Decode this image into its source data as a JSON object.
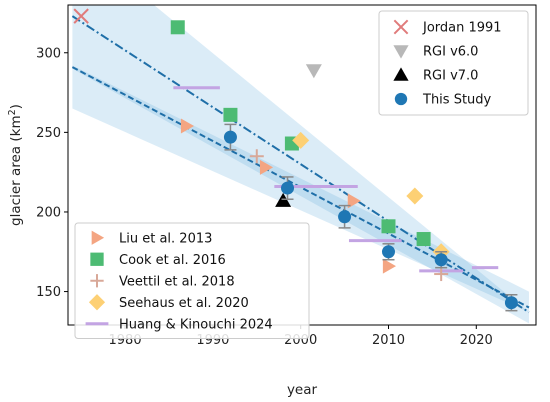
{
  "chart_data": {
    "type": "scatter",
    "xlabel": "year",
    "ylabel": "glacier area (km",
    "ylabel_sup": "2",
    "ylabel_tail": ")",
    "xlim": [
      1973.5,
      2026.8
    ],
    "ylim": [
      129,
      330
    ],
    "xticks": [
      1980,
      1990,
      2000,
      2010,
      2020
    ],
    "yticks": [
      150,
      200,
      250,
      300
    ],
    "xtick_labels": [
      "1980",
      "1990",
      "2000",
      "2010",
      "2020"
    ],
    "ytick_labels": [
      "150",
      "200",
      "250",
      "300"
    ],
    "series": [
      {
        "name": "Jordan 1991",
        "marker": "x",
        "color": "#e07b7b",
        "points": [
          [
            1975,
            323
          ]
        ]
      },
      {
        "name": "RGI v6.0",
        "marker": "triangle-down",
        "color": "#b8b8b8",
        "points": [
          [
            2001.5,
            289
          ]
        ]
      },
      {
        "name": "RGI v7.0",
        "marker": "triangle-up",
        "color": "#000000",
        "points": [
          [
            1998,
            207
          ]
        ]
      },
      {
        "name": "This Study",
        "marker": "circle",
        "color": "#1f77b4",
        "points": [
          [
            1992,
            247
          ],
          [
            1998.5,
            215
          ],
          [
            2005,
            197
          ],
          [
            2010,
            175
          ],
          [
            2016,
            170
          ],
          [
            2024,
            143
          ]
        ],
        "yerr": [
          8,
          7,
          7,
          5,
          5,
          5
        ]
      },
      {
        "name": "Liu et al. 2013",
        "marker": "triangle-right",
        "color": "#f4a582",
        "points": [
          [
            1987,
            254
          ],
          [
            1996,
            228
          ],
          [
            2006,
            207
          ],
          [
            2010,
            166
          ]
        ]
      },
      {
        "name": "Cook et al. 2016",
        "marker": "square",
        "color": "#4dbb73",
        "points": [
          [
            1986,
            316
          ],
          [
            1992,
            261
          ],
          [
            1999,
            243
          ],
          [
            2010,
            191
          ],
          [
            2014,
            183
          ]
        ]
      },
      {
        "name": "Veettil et al. 2018",
        "marker": "plus",
        "color": "#d8a898",
        "points": [
          [
            1995,
            235
          ],
          [
            2016,
            161
          ]
        ]
      },
      {
        "name": "Seehaus et al. 2020",
        "marker": "diamond",
        "color": "#fdd074",
        "points": [
          [
            2000,
            245
          ],
          [
            2013,
            210
          ],
          [
            2016,
            175
          ]
        ]
      },
      {
        "name": "Huang & Kinouchi 2024",
        "marker": "hline",
        "color": "#c3a4e3",
        "segments": [
          [
            1985.5,
            1990.8,
            278
          ],
          [
            1997,
            2006.5,
            216
          ],
          [
            2005.5,
            2011.5,
            182
          ],
          [
            2013.5,
            2018.5,
            163
          ],
          [
            2019.5,
            2022.5,
            165
          ]
        ]
      }
    ],
    "fits": [
      {
        "style": "dash-dot",
        "color": "#1f6fa8",
        "x": [
          1974,
          2026
        ],
        "y": [
          323,
          137
        ],
        "band": [
          [
            265,
            372
          ],
          [
            137,
            137
          ]
        ]
      },
      {
        "style": "dashed",
        "color": "#1f6fa8",
        "x": [
          1974,
          2026
        ],
        "y": [
          291,
          140
        ],
        "band": [
          [
            290,
            292
          ],
          [
            130,
            150
          ]
        ]
      }
    ],
    "legend_upper": [
      "Jordan 1991",
      "RGI v6.0",
      "RGI v7.0",
      "This Study"
    ],
    "legend_lower": [
      "Liu et al. 2013",
      "Cook et al. 2016",
      "Veettil et al. 2018",
      "Seehaus et al. 2020",
      "Huang & Kinouchi 2024"
    ],
    "grid": false,
    "legend_placement": [
      "top-right",
      "bottom-left"
    ]
  }
}
